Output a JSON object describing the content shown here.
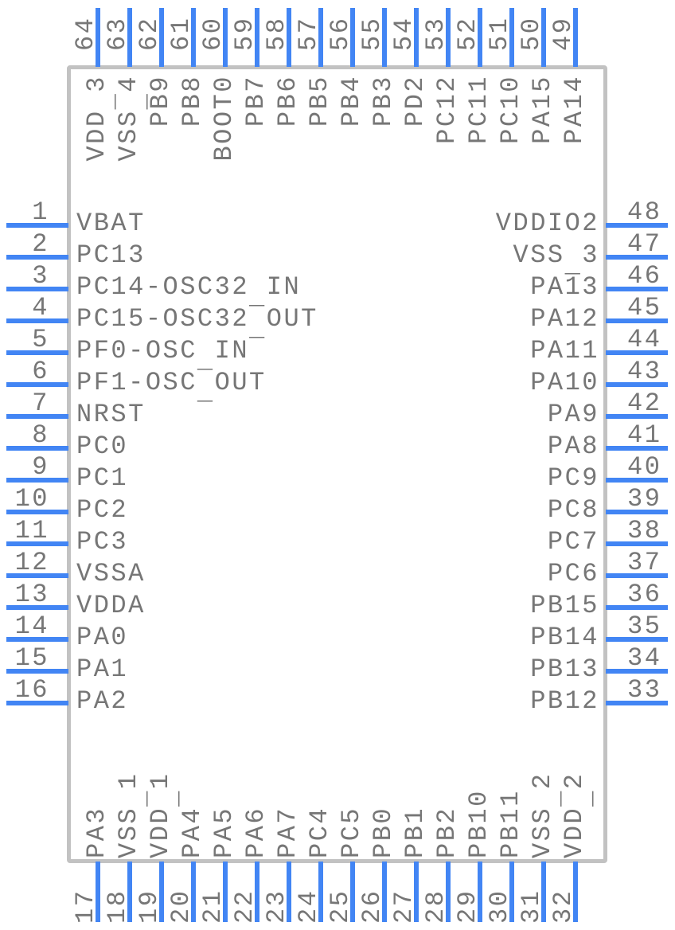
{
  "diagram": {
    "type": "ic-pinout",
    "package": "64-pin quad flat package symbol",
    "pin_count": 64,
    "colors": {
      "lead": "#4285f4",
      "text": "#767676",
      "body_border": "#c2c2c2",
      "background": "#ffffff"
    },
    "sides": {
      "top": {
        "order": "left-to-right",
        "pins": [
          {
            "number": "64",
            "name": "VDD_3"
          },
          {
            "number": "63",
            "name": "VSS_4"
          },
          {
            "number": "62",
            "name": "PB9"
          },
          {
            "number": "61",
            "name": "PB8"
          },
          {
            "number": "60",
            "name": "BOOT0"
          },
          {
            "number": "59",
            "name": "PB7"
          },
          {
            "number": "58",
            "name": "PB6"
          },
          {
            "number": "57",
            "name": "PB5"
          },
          {
            "number": "56",
            "name": "PB4"
          },
          {
            "number": "55",
            "name": "PB3"
          },
          {
            "number": "54",
            "name": "PD2"
          },
          {
            "number": "53",
            "name": "PC12"
          },
          {
            "number": "52",
            "name": "PC11"
          },
          {
            "number": "51",
            "name": "PC10"
          },
          {
            "number": "50",
            "name": "PA15"
          },
          {
            "number": "49",
            "name": "PA14"
          }
        ]
      },
      "left": {
        "order": "top-to-bottom",
        "pins": [
          {
            "number": "1",
            "name": "VBAT"
          },
          {
            "number": "2",
            "name": "PC13"
          },
          {
            "number": "3",
            "name": "PC14-OSC32_IN"
          },
          {
            "number": "4",
            "name": "PC15-OSC32_OUT"
          },
          {
            "number": "5",
            "name": "PF0-OSC_IN"
          },
          {
            "number": "6",
            "name": "PF1-OSC_OUT"
          },
          {
            "number": "7",
            "name": "NRST"
          },
          {
            "number": "8",
            "name": "PC0"
          },
          {
            "number": "9",
            "name": "PC1"
          },
          {
            "number": "10",
            "name": "PC2"
          },
          {
            "number": "11",
            "name": "PC3"
          },
          {
            "number": "12",
            "name": "VSSA"
          },
          {
            "number": "13",
            "name": "VDDA"
          },
          {
            "number": "14",
            "name": "PA0"
          },
          {
            "number": "15",
            "name": "PA1"
          },
          {
            "number": "16",
            "name": "PA2"
          }
        ]
      },
      "right": {
        "order": "top-to-bottom",
        "pins": [
          {
            "number": "48",
            "name": "VDDIO2"
          },
          {
            "number": "47",
            "name": "VSS_3"
          },
          {
            "number": "46",
            "name": "PA13"
          },
          {
            "number": "45",
            "name": "PA12"
          },
          {
            "number": "44",
            "name": "PA11"
          },
          {
            "number": "43",
            "name": "PA10"
          },
          {
            "number": "42",
            "name": "PA9"
          },
          {
            "number": "41",
            "name": "PA8"
          },
          {
            "number": "40",
            "name": "PC9"
          },
          {
            "number": "39",
            "name": "PC8"
          },
          {
            "number": "38",
            "name": "PC7"
          },
          {
            "number": "37",
            "name": "PC6"
          },
          {
            "number": "36",
            "name": "PB15"
          },
          {
            "number": "35",
            "name": "PB14"
          },
          {
            "number": "34",
            "name": "PB13"
          },
          {
            "number": "33",
            "name": "PB12"
          }
        ]
      },
      "bottom": {
        "order": "left-to-right",
        "pins": [
          {
            "number": "17",
            "name": "PA3"
          },
          {
            "number": "18",
            "name": "VSS_1"
          },
          {
            "number": "19",
            "name": "VDD_1"
          },
          {
            "number": "20",
            "name": "PA4"
          },
          {
            "number": "21",
            "name": "PA5"
          },
          {
            "number": "22",
            "name": "PA6"
          },
          {
            "number": "23",
            "name": "PA7"
          },
          {
            "number": "24",
            "name": "PC4"
          },
          {
            "number": "25",
            "name": "PC5"
          },
          {
            "number": "26",
            "name": "PB0"
          },
          {
            "number": "27",
            "name": "PB1"
          },
          {
            "number": "28",
            "name": "PB2"
          },
          {
            "number": "29",
            "name": "PB10"
          },
          {
            "number": "30",
            "name": "PB11"
          },
          {
            "number": "31",
            "name": "VSS_2"
          },
          {
            "number": "32",
            "name": "VDD_2"
          }
        ]
      }
    }
  }
}
